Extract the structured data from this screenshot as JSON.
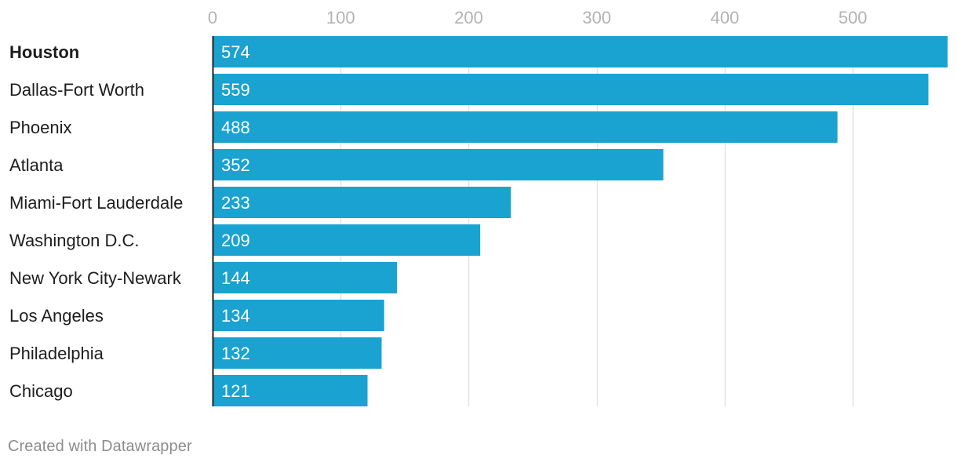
{
  "chart_data": {
    "type": "bar",
    "orientation": "horizontal",
    "categories": [
      "Houston",
      "Dallas-Fort Worth",
      "Phoenix",
      "Atlanta",
      "Miami-Fort Lauderdale",
      "Washington D.C.",
      "New York City-Newark",
      "Los Angeles",
      "Philadelphia",
      "Chicago"
    ],
    "values": [
      574,
      559,
      488,
      352,
      233,
      209,
      144,
      134,
      132,
      121
    ],
    "value_labels": [
      "574",
      "559",
      "488",
      "352",
      "233",
      "209",
      "144",
      "134",
      "132",
      "121"
    ],
    "highlighted_category": "Houston",
    "xticks": [
      0,
      100,
      200,
      300,
      400,
      500
    ],
    "xtick_labels": [
      "0",
      "100",
      "200",
      "300",
      "400",
      "500"
    ],
    "xlim": [
      0,
      574
    ],
    "grid": true,
    "title": "",
    "xlabel": "",
    "ylabel": ""
  },
  "colors": {
    "bar": "#1aa2d0",
    "grid": "#e3e3e3",
    "axis": "#222222"
  },
  "footer": {
    "credit": "Created with Datawrapper"
  }
}
